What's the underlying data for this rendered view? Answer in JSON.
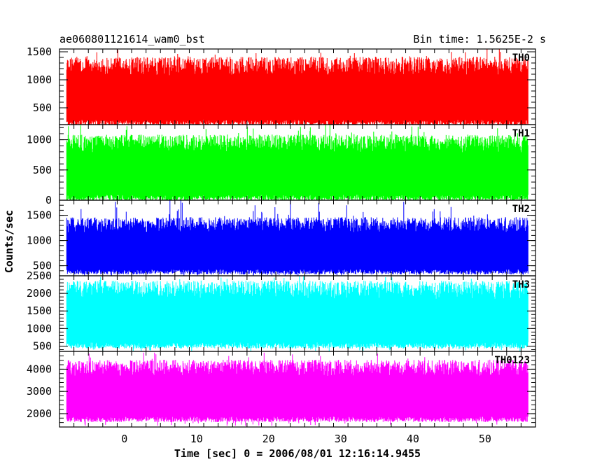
{
  "header": {
    "left_title": "ae060801121614_wam0_bst",
    "right_title": "Bin time: 1.5625E-2 s"
  },
  "axes": {
    "xlabel": "Time [sec] 0 = 2006/08/01 12:16:14.9455",
    "ylabel": "Counts/sec",
    "x_ticks": [
      0,
      10,
      20,
      30,
      40,
      50
    ],
    "x_tick_labels": [
      "0",
      "10",
      "20",
      "30",
      "40",
      "50"
    ]
  },
  "chart_data": {
    "type": "line",
    "title": "ae060801121614_wam0_bst",
    "xlabel": "Time [sec] 0 = 2006/08/01 12:16:14.9455",
    "ylabel": "Counts/sec",
    "xlim": [
      -9,
      57
    ],
    "x_range_data": [
      -8,
      56
    ],
    "bin_time_s": 0.015625,
    "grid": false,
    "series": [
      {
        "name": "TH0",
        "color": "#ff0000",
        "ylim": [
          200,
          1550
        ],
        "y_ticks": [
          500,
          1000,
          1500
        ],
        "y_tick_labels": [
          "500",
          "1000",
          "1500"
        ],
        "band_low": 230,
        "band_high": 1180,
        "spike_min": 130,
        "spike_max": 1550
      },
      {
        "name": "TH1",
        "color": "#00ff00",
        "ylim": [
          0,
          1250
        ],
        "y_ticks": [
          0,
          500,
          1000
        ],
        "y_tick_labels": [
          "0",
          "500",
          "1000"
        ],
        "band_low": 40,
        "band_high": 880,
        "spike_min": 0,
        "spike_max": 1250
      },
      {
        "name": "TH2",
        "color": "#0000ff",
        "ylim": [
          300,
          1800
        ],
        "y_ticks": [
          500,
          1000,
          1500
        ],
        "y_tick_labels": [
          "500",
          "1000",
          "1500"
        ],
        "band_low": 380,
        "band_high": 1250,
        "spike_min": 300,
        "spike_max": 1800
      },
      {
        "name": "TH3",
        "color": "#00ffff",
        "ylim": [
          350,
          2500
        ],
        "y_ticks": [
          500,
          1000,
          1500,
          2000,
          2500
        ],
        "y_tick_labels": [
          "500",
          "1000",
          "1500",
          "2000",
          "2500"
        ],
        "band_low": 520,
        "band_high": 2000,
        "spike_min": 350,
        "spike_max": 2500
      },
      {
        "name": "TH0123",
        "color": "#ff00ff",
        "ylim": [
          1400,
          4800
        ],
        "y_ticks": [
          2000,
          3000,
          4000
        ],
        "y_tick_labels": [
          "2000",
          "3000",
          "4000"
        ],
        "band_low": 1750,
        "band_high": 3900,
        "spike_min": 1450,
        "spike_max": 4750
      }
    ]
  }
}
